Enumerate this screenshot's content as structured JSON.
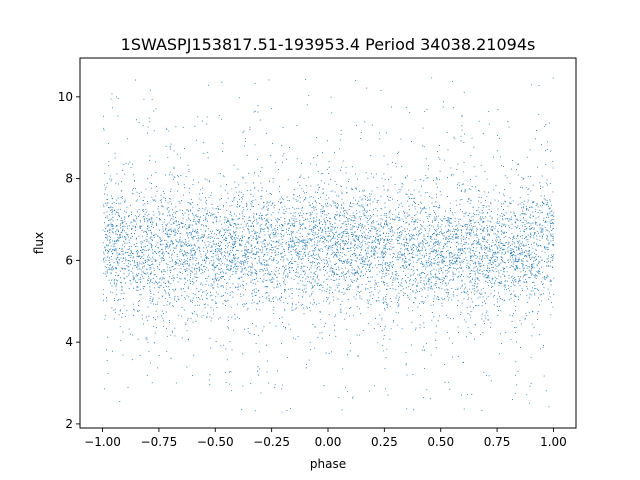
{
  "chart_data": {
    "type": "scatter",
    "title": "1SWASPJ153817.51-193953.4 Period 34038.21094s",
    "xlabel": "phase",
    "ylabel": "flux",
    "xlim": [
      -1.1,
      1.1
    ],
    "ylim": [
      1.9,
      10.95
    ],
    "xticks": [
      -1.0,
      -0.75,
      -0.5,
      -0.25,
      0.0,
      0.25,
      0.5,
      0.75,
      1.0
    ],
    "xtick_labels": [
      "−1.00",
      "−0.75",
      "−0.50",
      "−0.25",
      "0.00",
      "0.25",
      "0.50",
      "0.75",
      "1.00"
    ],
    "yticks": [
      2,
      4,
      6,
      8,
      10
    ],
    "ytick_labels": [
      "2",
      "4",
      "6",
      "8",
      "10"
    ],
    "grid": false,
    "legend": "none",
    "point_color": "#1f77b4",
    "series": [
      {
        "x_range": [
          -1.0,
          1.0
        ],
        "y_range": [
          2.3,
          10.5
        ],
        "core_flux_range": [
          5.5,
          7.0
        ],
        "median_flux": 6.3,
        "flux_by_phase": {
          "phase": [
            -1.0,
            -0.75,
            -0.5,
            -0.25,
            0.0,
            0.25,
            0.5,
            0.75,
            1.0
          ],
          "median": [
            6.4,
            6.3,
            6.2,
            6.3,
            6.4,
            6.3,
            6.2,
            6.3,
            6.4
          ]
        }
      }
    ]
  }
}
